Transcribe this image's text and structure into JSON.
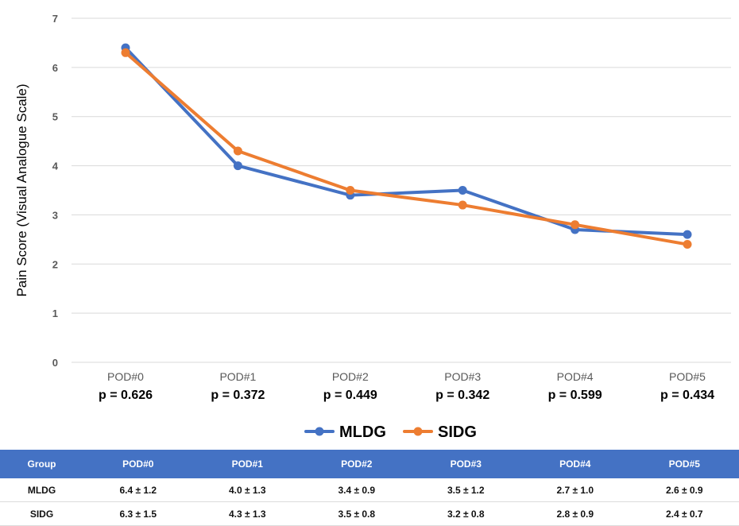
{
  "chart_data": {
    "type": "line",
    "categories": [
      "POD#0",
      "POD#1",
      "POD#2",
      "POD#3",
      "POD#4",
      "POD#5"
    ],
    "p_values": [
      "p = 0.626",
      "p = 0.372",
      "p = 0.449",
      "p = 0.342",
      "p = 0.599",
      "p = 0.434"
    ],
    "series": [
      {
        "name": "MLDG",
        "color": "#4472c4",
        "values": [
          6.4,
          4.0,
          3.4,
          3.5,
          2.7,
          2.6
        ]
      },
      {
        "name": "SIDG",
        "color": "#ed7d31",
        "values": [
          6.3,
          4.3,
          3.5,
          3.2,
          2.8,
          2.4
        ]
      }
    ],
    "ylabel": "Pain Score (Visual Analogue Scale)",
    "ylim": [
      0,
      7
    ],
    "yticks": [
      0,
      1,
      2,
      3,
      4,
      5,
      6,
      7
    ],
    "grid": true,
    "legend": "bottom-center"
  },
  "table": {
    "header_color": "#4472c4",
    "headers": [
      "Group",
      "POD#0",
      "POD#1",
      "POD#2",
      "POD#3",
      "POD#4",
      "POD#5"
    ],
    "rows": [
      [
        "MLDG",
        "6.4 ± 1.2",
        "4.0 ± 1.3",
        "3.4 ± 0.9",
        "3.5 ± 1.2",
        "2.7 ± 1.0",
        "2.6 ± 0.9"
      ],
      [
        "SIDG",
        "6.3 ± 1.5",
        "4.3 ± 1.3",
        "3.5 ± 0.8",
        "3.2 ± 0.8",
        "2.8 ± 0.9",
        "2.4 ± 0.7"
      ]
    ]
  }
}
